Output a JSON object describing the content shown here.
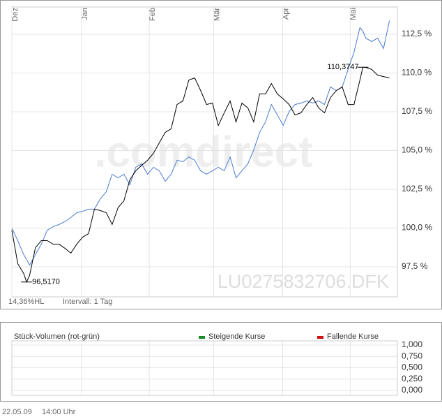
{
  "chart_data": {
    "type": "line",
    "x": [
      0,
      2,
      4,
      5,
      6,
      8,
      10,
      12,
      14,
      16,
      18,
      20,
      22,
      24,
      26,
      28,
      30,
      32,
      34,
      36,
      38,
      40,
      42,
      44,
      46,
      48,
      50,
      52,
      54,
      56,
      58,
      60,
      62,
      64,
      66,
      68,
      70,
      72,
      74,
      76,
      78,
      80,
      82,
      84,
      86,
      88,
      90,
      92,
      94,
      96,
      98,
      100,
      102,
      104,
      106,
      108,
      110,
      112,
      114,
      116,
      118,
      119,
      120,
      122,
      124,
      126,
      128
    ],
    "series": [
      {
        "color": "#000000",
        "values": [
          99.86,
          97.7,
          97.07,
          96.517,
          96.94,
          98.74,
          99.19,
          99.19,
          98.96,
          98.96,
          98.69,
          98.38,
          98.96,
          99.41,
          99.64,
          101.22,
          101.13,
          100.99,
          100.23,
          101.31,
          101.76,
          103.11,
          103.69,
          104.05,
          104.37,
          104.82,
          105.5,
          106.17,
          106.4,
          107.97,
          108.2,
          109.55,
          109.68,
          108.87,
          107.97,
          108.06,
          106.62,
          107.43,
          108.2,
          106.85,
          108.06,
          107.75,
          106.85,
          108.65,
          108.65,
          109.32,
          108.65,
          108.33,
          107.97,
          107.3,
          107.43,
          107.97,
          108.42,
          107.75,
          107.43,
          108.42,
          108.87,
          109.1,
          107.97,
          107.97,
          109.55,
          110.3747,
          110.36,
          110.23,
          109.86,
          109.77,
          109.68
        ]
      },
      {
        "color": "#4a7bd0",
        "values": [
          100,
          99.19,
          98.29,
          97.97,
          97.61,
          98.29,
          98.96,
          99.86,
          100.09,
          100.23,
          100.41,
          100.68,
          100.99,
          101.08,
          101.22,
          101.22,
          101.89,
          102.34,
          103.47,
          103.24,
          103.47,
          102.79,
          103.92,
          104.14,
          103.47,
          103.92,
          103.69,
          103.02,
          103.47,
          104.37,
          104.28,
          104.59,
          104.37,
          103.69,
          103.47,
          103.69,
          103.92,
          103.69,
          104.59,
          103.24,
          103.69,
          104.14,
          105.05,
          106.17,
          106.85,
          107.97,
          107.3,
          106.62,
          107.52,
          107.97,
          108.06,
          108.2,
          108.06,
          108.2,
          107.97,
          109.1,
          108.87,
          109.1,
          110.23,
          111.35,
          112.93,
          112.7,
          112.25,
          112.03,
          112.25,
          111.58,
          113.38
        ]
      }
    ],
    "xlim": [
      0,
      130.7
    ],
    "xticks": [
      {
        "value": 0,
        "label": "Dez"
      },
      {
        "value": 23.6,
        "label": "Jan"
      },
      {
        "value": 46.6,
        "label": "Feb"
      },
      {
        "value": 68.4,
        "label": "Mär"
      },
      {
        "value": 91.8,
        "label": "Apr"
      },
      {
        "value": 114.7,
        "label": "Mai"
      }
    ],
    "ylim": [
      95.56,
      114.26
    ],
    "yticks": [
      {
        "value": 97.5,
        "label": "97,5 %"
      },
      {
        "value": 100,
        "label": "100,0 %"
      },
      {
        "value": 102.5,
        "label": "102,5 %"
      },
      {
        "value": 105,
        "label": "105,0 %"
      },
      {
        "value": 107.5,
        "label": "107,5 %"
      },
      {
        "value": 110,
        "label": "110,0 %"
      },
      {
        "value": 112.5,
        "label": "112,5 %"
      }
    ],
    "grid": true,
    "annotations": [
      {
        "text": "96,5170",
        "x": 5,
        "value": 96.517
      },
      {
        "text": "110,3747",
        "x": 119,
        "value": 110.3747
      }
    ],
    "watermark": ".comdirect",
    "symbol": "LU0275832706.DFK",
    "range_info": "14,36%HL",
    "interval": "Intervall: 1 Tag",
    "volume": {
      "title": "Stück-Volumen (rot-grün)",
      "legend": [
        {
          "name": "Steigende Kurse",
          "color": "#1a8a2a"
        },
        {
          "name": "Fallende Kurse",
          "color": "#cc1111"
        }
      ],
      "ylim": [
        0,
        1
      ],
      "yticks": [
        {
          "value": 0,
          "label": "0,000"
        },
        {
          "value": 0.25,
          "label": "0,250"
        },
        {
          "value": 0.5,
          "label": "0,500"
        },
        {
          "value": 0.75,
          "label": "0,750"
        },
        {
          "value": 1,
          "label": "1,000"
        }
      ]
    },
    "date": "22.05.09",
    "time": "14:00 Uhr"
  }
}
